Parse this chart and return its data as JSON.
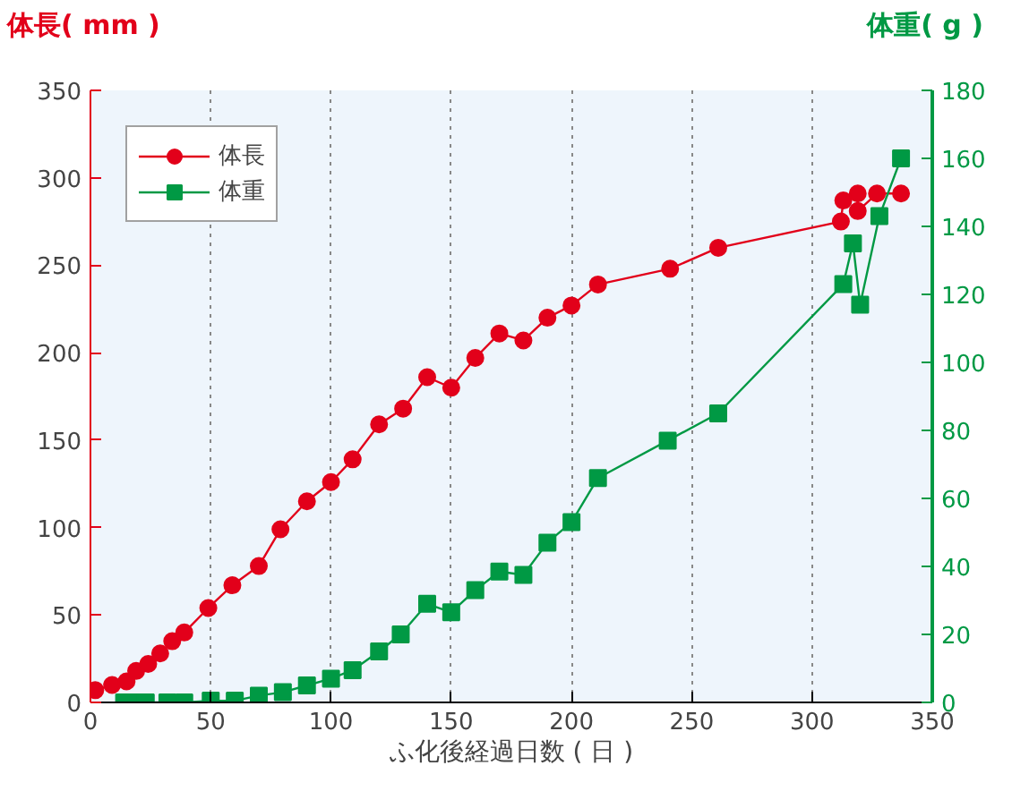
{
  "chart_data": {
    "type": "line",
    "xlabel": "ふ化後経過日数 ( 日 )",
    "ylabel": "体長( mm )",
    "y2label": "体重( g )",
    "xlim": [
      0,
      350
    ],
    "xticks": [
      0,
      50,
      100,
      150,
      200,
      250,
      300,
      350
    ],
    "ylim": [
      0,
      350
    ],
    "yticks": [
      0,
      50,
      100,
      150,
      200,
      250,
      300,
      350
    ],
    "y2lim": [
      0,
      180
    ],
    "y2ticks": [
      0,
      20,
      40,
      60,
      80,
      100,
      120,
      140,
      160,
      180
    ],
    "grid": "x",
    "legend": "top left",
    "line_style": "solid",
    "series": [
      {
        "name": "体長",
        "color": "#e2001a",
        "marker": "circle",
        "x": [
          2,
          9,
          15,
          19,
          24,
          29,
          34,
          39,
          49,
          59,
          70,
          79,
          90,
          100,
          109,
          120,
          130,
          140,
          150,
          160,
          170,
          180,
          190,
          200,
          211,
          241,
          261,
          312,
          313,
          319,
          319,
          327,
          337
        ],
        "values": [
          7,
          10,
          12,
          18,
          22,
          28,
          35,
          40,
          54,
          67,
          78,
          99,
          115,
          126,
          139,
          159,
          168,
          186,
          180,
          197,
          211,
          207,
          220,
          227,
          239,
          248,
          260,
          275,
          287,
          291,
          281,
          291,
          291
        ]
      },
      {
        "name": "体重",
        "color": "#009944",
        "marker": "square",
        "axis": "y2",
        "x": [
          14,
          19,
          23,
          32,
          39,
          50,
          60,
          70,
          80,
          90,
          100,
          109,
          120,
          129,
          140,
          150,
          160,
          170,
          180,
          190,
          200,
          211,
          240,
          261,
          313,
          317,
          320,
          328,
          337
        ],
        "values": [
          0,
          0,
          0,
          0,
          0,
          0.5,
          0.5,
          2,
          3,
          5,
          7,
          9.5,
          15,
          20,
          29,
          26.5,
          33,
          38.5,
          37.5,
          47,
          53,
          66,
          77,
          85,
          123,
          135,
          117,
          143,
          160
        ]
      }
    ]
  }
}
